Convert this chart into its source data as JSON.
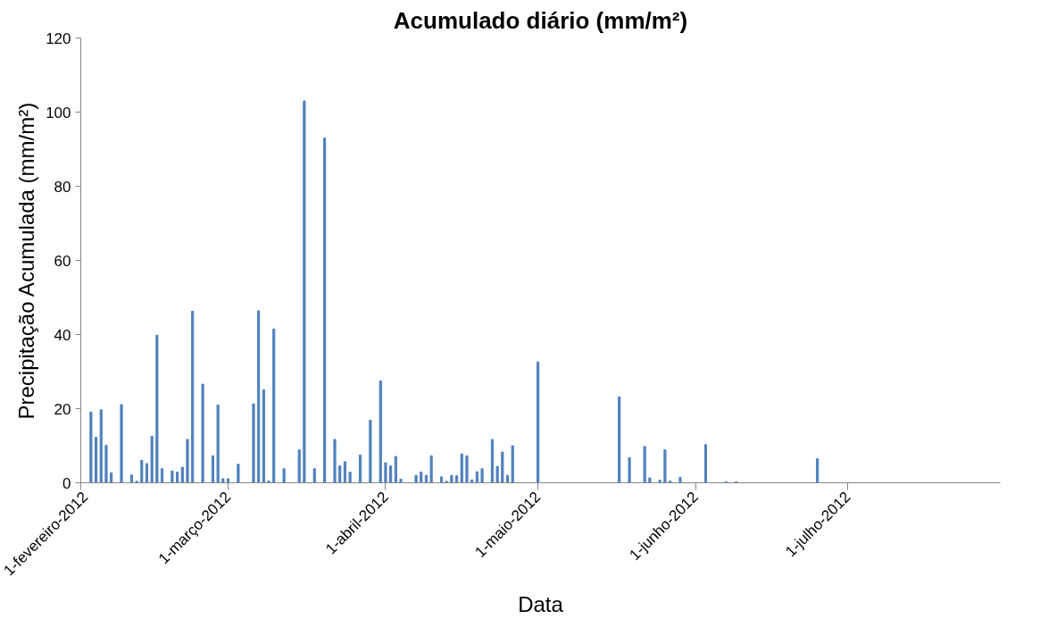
{
  "chart_data": {
    "type": "bar",
    "title": "Acumulado diário (mm/m²)",
    "xlabel": "Data",
    "ylabel": "Precipitação Acumulada (mm/m²)",
    "color": "#4f81bd",
    "x": [
      "2012-02-03",
      "2012-02-04",
      "2012-02-05",
      "2012-02-06",
      "2012-02-07",
      "2012-02-09",
      "2012-02-11",
      "2012-02-12",
      "2012-02-13",
      "2012-02-14",
      "2012-02-15",
      "2012-02-16",
      "2012-02-17",
      "2012-02-19",
      "2012-02-20",
      "2012-02-21",
      "2012-02-22",
      "2012-02-23",
      "2012-02-25",
      "2012-02-27",
      "2012-02-28",
      "2012-02-29",
      "2012-03-01",
      "2012-03-03",
      "2012-03-06",
      "2012-03-07",
      "2012-03-08",
      "2012-03-09",
      "2012-03-10",
      "2012-03-12",
      "2012-03-15",
      "2012-03-16",
      "2012-03-18",
      "2012-03-20",
      "2012-03-22",
      "2012-03-23",
      "2012-03-24",
      "2012-03-25",
      "2012-03-27",
      "2012-03-29",
      "2012-03-31",
      "2012-04-01",
      "2012-04-02",
      "2012-04-03",
      "2012-04-04",
      "2012-04-07",
      "2012-04-08",
      "2012-04-09",
      "2012-04-10",
      "2012-04-12",
      "2012-04-13",
      "2012-04-14",
      "2012-04-15",
      "2012-04-16",
      "2012-04-17",
      "2012-04-18",
      "2012-04-19",
      "2012-04-20",
      "2012-04-22",
      "2012-04-23",
      "2012-04-24",
      "2012-04-25",
      "2012-04-26",
      "2012-05-01",
      "2012-05-17",
      "2012-05-19",
      "2012-05-22",
      "2012-05-23",
      "2012-05-25",
      "2012-05-26",
      "2012-05-27",
      "2012-05-29",
      "2012-06-03",
      "2012-06-07",
      "2012-06-09",
      "2012-06-25"
    ],
    "values": [
      19.1,
      12.3,
      19.7,
      10.1,
      2.7,
      21.1,
      2.1,
      0.4,
      6.1,
      5.2,
      12.5,
      39.8,
      3.8,
      3.2,
      2.9,
      4.2,
      11.7,
      46.3,
      26.6,
      7.3,
      21,
      1.1,
      1.1,
      5,
      21.3,
      46.4,
      25.1,
      0.5,
      41.5,
      3.8,
      8.9,
      103,
      3.8,
      93,
      11.7,
      4.6,
      5.7,
      2.9,
      7.5,
      16.9,
      27.5,
      5.4,
      4.6,
      7.1,
      1,
      2,
      2.9,
      2,
      7.3,
      1.6,
      0.4,
      2,
      1.9,
      7.8,
      7.3,
      0.8,
      3,
      3.8,
      11.7,
      4.4,
      8.3,
      2,
      10,
      32.6,
      23.2,
      6.8,
      9.8,
      1.3,
      0.7,
      8.9,
      0.5,
      1.5,
      10.3,
      0.3,
      0.3,
      6.5
    ],
    "xlim": [
      "2012-02-01",
      "2012-07-31"
    ],
    "xticks": [
      {
        "value": "2012-02-01",
        "label": "1-fevereiro-2012"
      },
      {
        "value": "2012-03-01",
        "label": "1-março-2012"
      },
      {
        "value": "2012-04-01",
        "label": "1-abril-2012"
      },
      {
        "value": "2012-05-01",
        "label": "1-maio-2012"
      },
      {
        "value": "2012-06-01",
        "label": "1-junho-2012"
      },
      {
        "value": "2012-07-01",
        "label": "1-julho-2012"
      }
    ],
    "ylim": [
      0,
      120
    ],
    "yticks": [
      0,
      20,
      40,
      60,
      80,
      100,
      120
    ],
    "grid": false
  }
}
